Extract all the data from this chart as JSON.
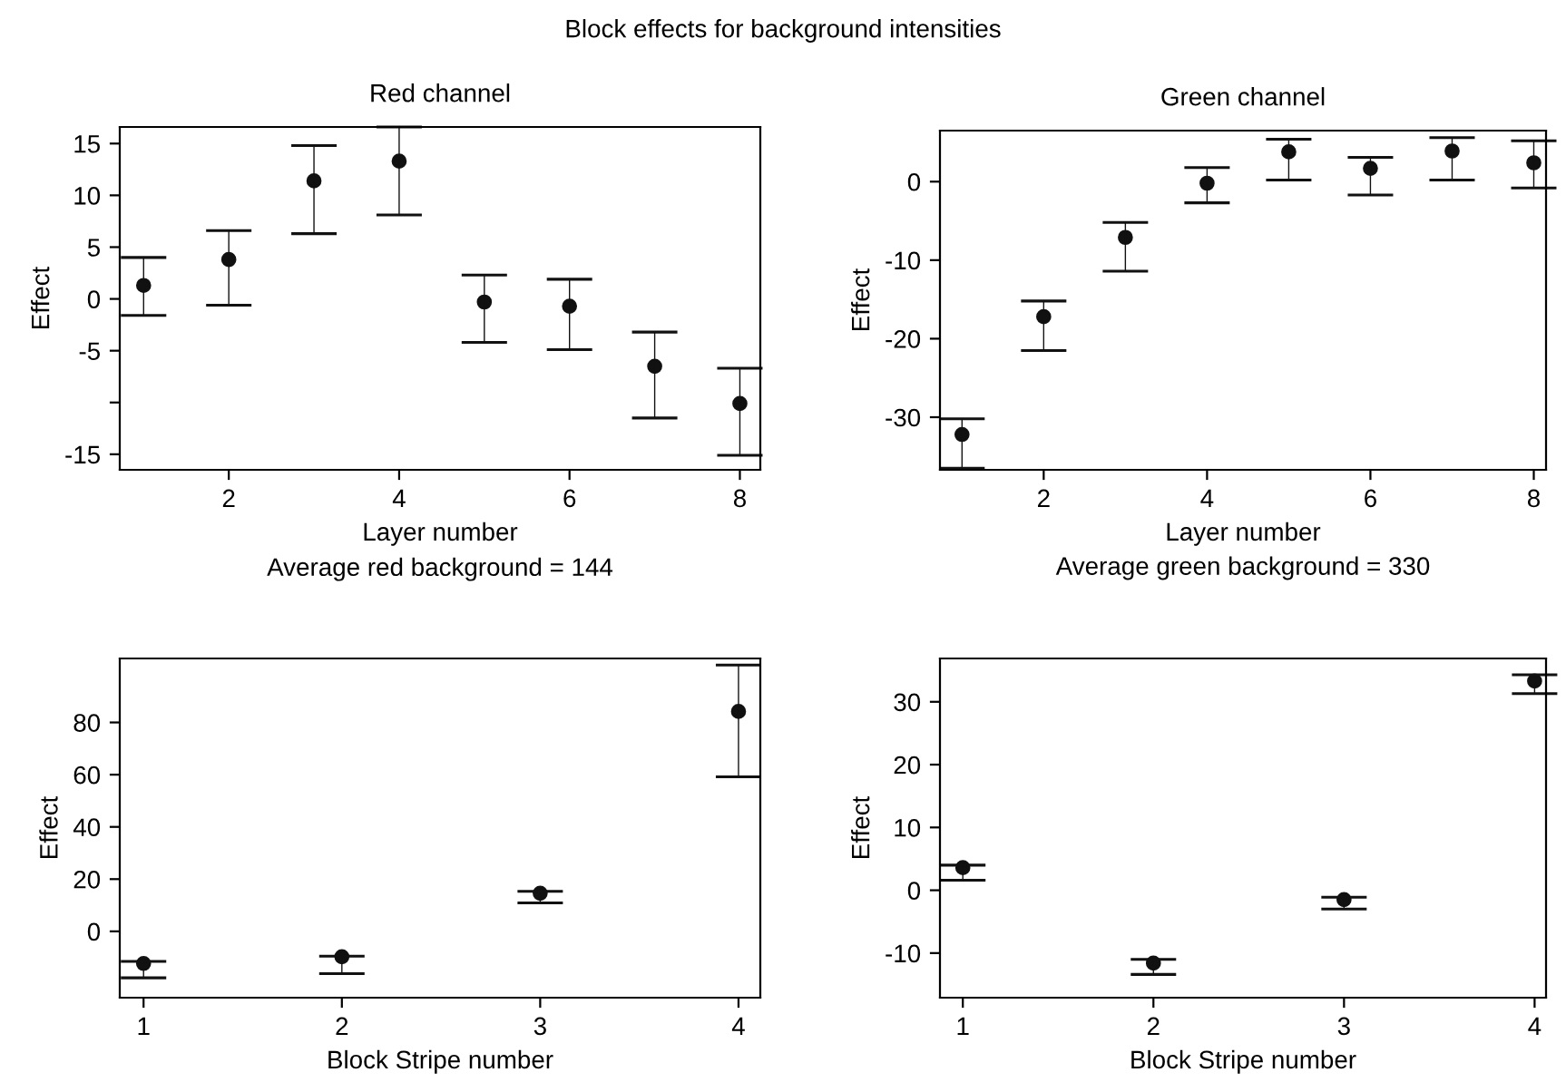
{
  "chart_data": [
    {
      "type": "scatter",
      "title": "Red channel",
      "xlabel": "Layer number",
      "ylabel": "Effect",
      "annotations": [
        "Average red background = 144",
        "Block effects for background intensities"
      ],
      "x": [
        1,
        2,
        3,
        4,
        5,
        6,
        7,
        8
      ],
      "series": [
        {
          "color": "#111111",
          "values": [
            1.3,
            3.8,
            11.4,
            13.3,
            -0.3,
            -0.7,
            -6.5,
            -10.1
          ],
          "errors": [
            [
              -1.6,
              4.0
            ],
            [
              -0.6,
              6.6
            ],
            [
              6.3,
              14.8
            ],
            [
              8.1,
              16.6
            ],
            [
              -4.2,
              2.3
            ],
            [
              -4.9,
              1.9
            ],
            [
              -11.5,
              -3.2
            ],
            [
              -15.1,
              -6.7
            ]
          ]
        }
      ],
      "xlim": [
        0.72,
        8.24
      ],
      "xticks": [
        2,
        4,
        6,
        8
      ],
      "ylim": [
        -16.5,
        16.6
      ],
      "yticks": [
        -15,
        {
          "value": -10,
          "label": null
        },
        -5,
        0,
        5,
        10,
        15
      ],
      "marker": "circle",
      "grid": false
    },
    {
      "type": "scatter",
      "title": "Green channel",
      "xlabel": "Layer number",
      "ylabel": "Effect",
      "annotations": [
        "Average green background = 330"
      ],
      "x": [
        1,
        2,
        3,
        4,
        5,
        6,
        7,
        8
      ],
      "series": [
        {
          "color": "#111111",
          "values": [
            -32.2,
            -17.2,
            -7.1,
            -0.2,
            3.8,
            1.7,
            3.9,
            2.4
          ],
          "errors": [
            [
              -36.5,
              -30.2
            ],
            [
              -21.5,
              -15.2
            ],
            [
              -11.4,
              -5.2
            ],
            [
              -2.7,
              1.8
            ],
            [
              0.2,
              5.4
            ],
            [
              -1.7,
              3.1
            ],
            [
              0.2,
              5.6
            ],
            [
              -0.8,
              5.2
            ]
          ]
        }
      ],
      "xlim": [
        0.73,
        8.15
      ],
      "xticks": [
        2,
        4,
        6,
        8
      ],
      "ylim": [
        -36.7,
        6.5
      ],
      "yticks": [
        -30,
        -20,
        -10,
        0
      ],
      "marker": "circle",
      "grid": false
    },
    {
      "type": "scatter",
      "xlabel": "Block Stripe number",
      "ylabel": "Effect",
      "x": [
        1,
        2,
        3,
        4
      ],
      "series": [
        {
          "color": "#111111",
          "values": [
            -12.3,
            -9.7,
            14.6,
            84.2
          ],
          "errors": [
            [
              -17.8,
              -11.5
            ],
            [
              -16.2,
              -9.5
            ],
            [
              10.9,
              15.3
            ],
            [
              59.2,
              102
            ]
          ]
        }
      ],
      "xlim": [
        0.88,
        4.11
      ],
      "xticks": [
        1,
        2,
        3,
        4
      ],
      "ylim": [
        -25.4,
        104.5
      ],
      "yticks": [
        0,
        20,
        40,
        60,
        80
      ],
      "marker": "circle",
      "grid": false
    },
    {
      "type": "scatter",
      "xlabel": "Block Stripe number",
      "ylabel": "Effect",
      "x": [
        1,
        2,
        3,
        4
      ],
      "series": [
        {
          "color": "#111111",
          "values": [
            3.6,
            -11.6,
            -1.5,
            33.3
          ],
          "errors": [
            [
              1.6,
              4.0
            ],
            [
              -13.4,
              -11.0
            ],
            [
              -3.0,
              -1.1
            ],
            [
              31.3,
              34.3
            ]
          ]
        }
      ],
      "xlim": [
        0.88,
        4.06
      ],
      "xticks": [
        1,
        2,
        3,
        4
      ],
      "ylim": [
        -17.1,
        36.9
      ],
      "yticks": [
        -10,
        0,
        10,
        20,
        30
      ],
      "marker": "circle",
      "grid": false
    }
  ]
}
